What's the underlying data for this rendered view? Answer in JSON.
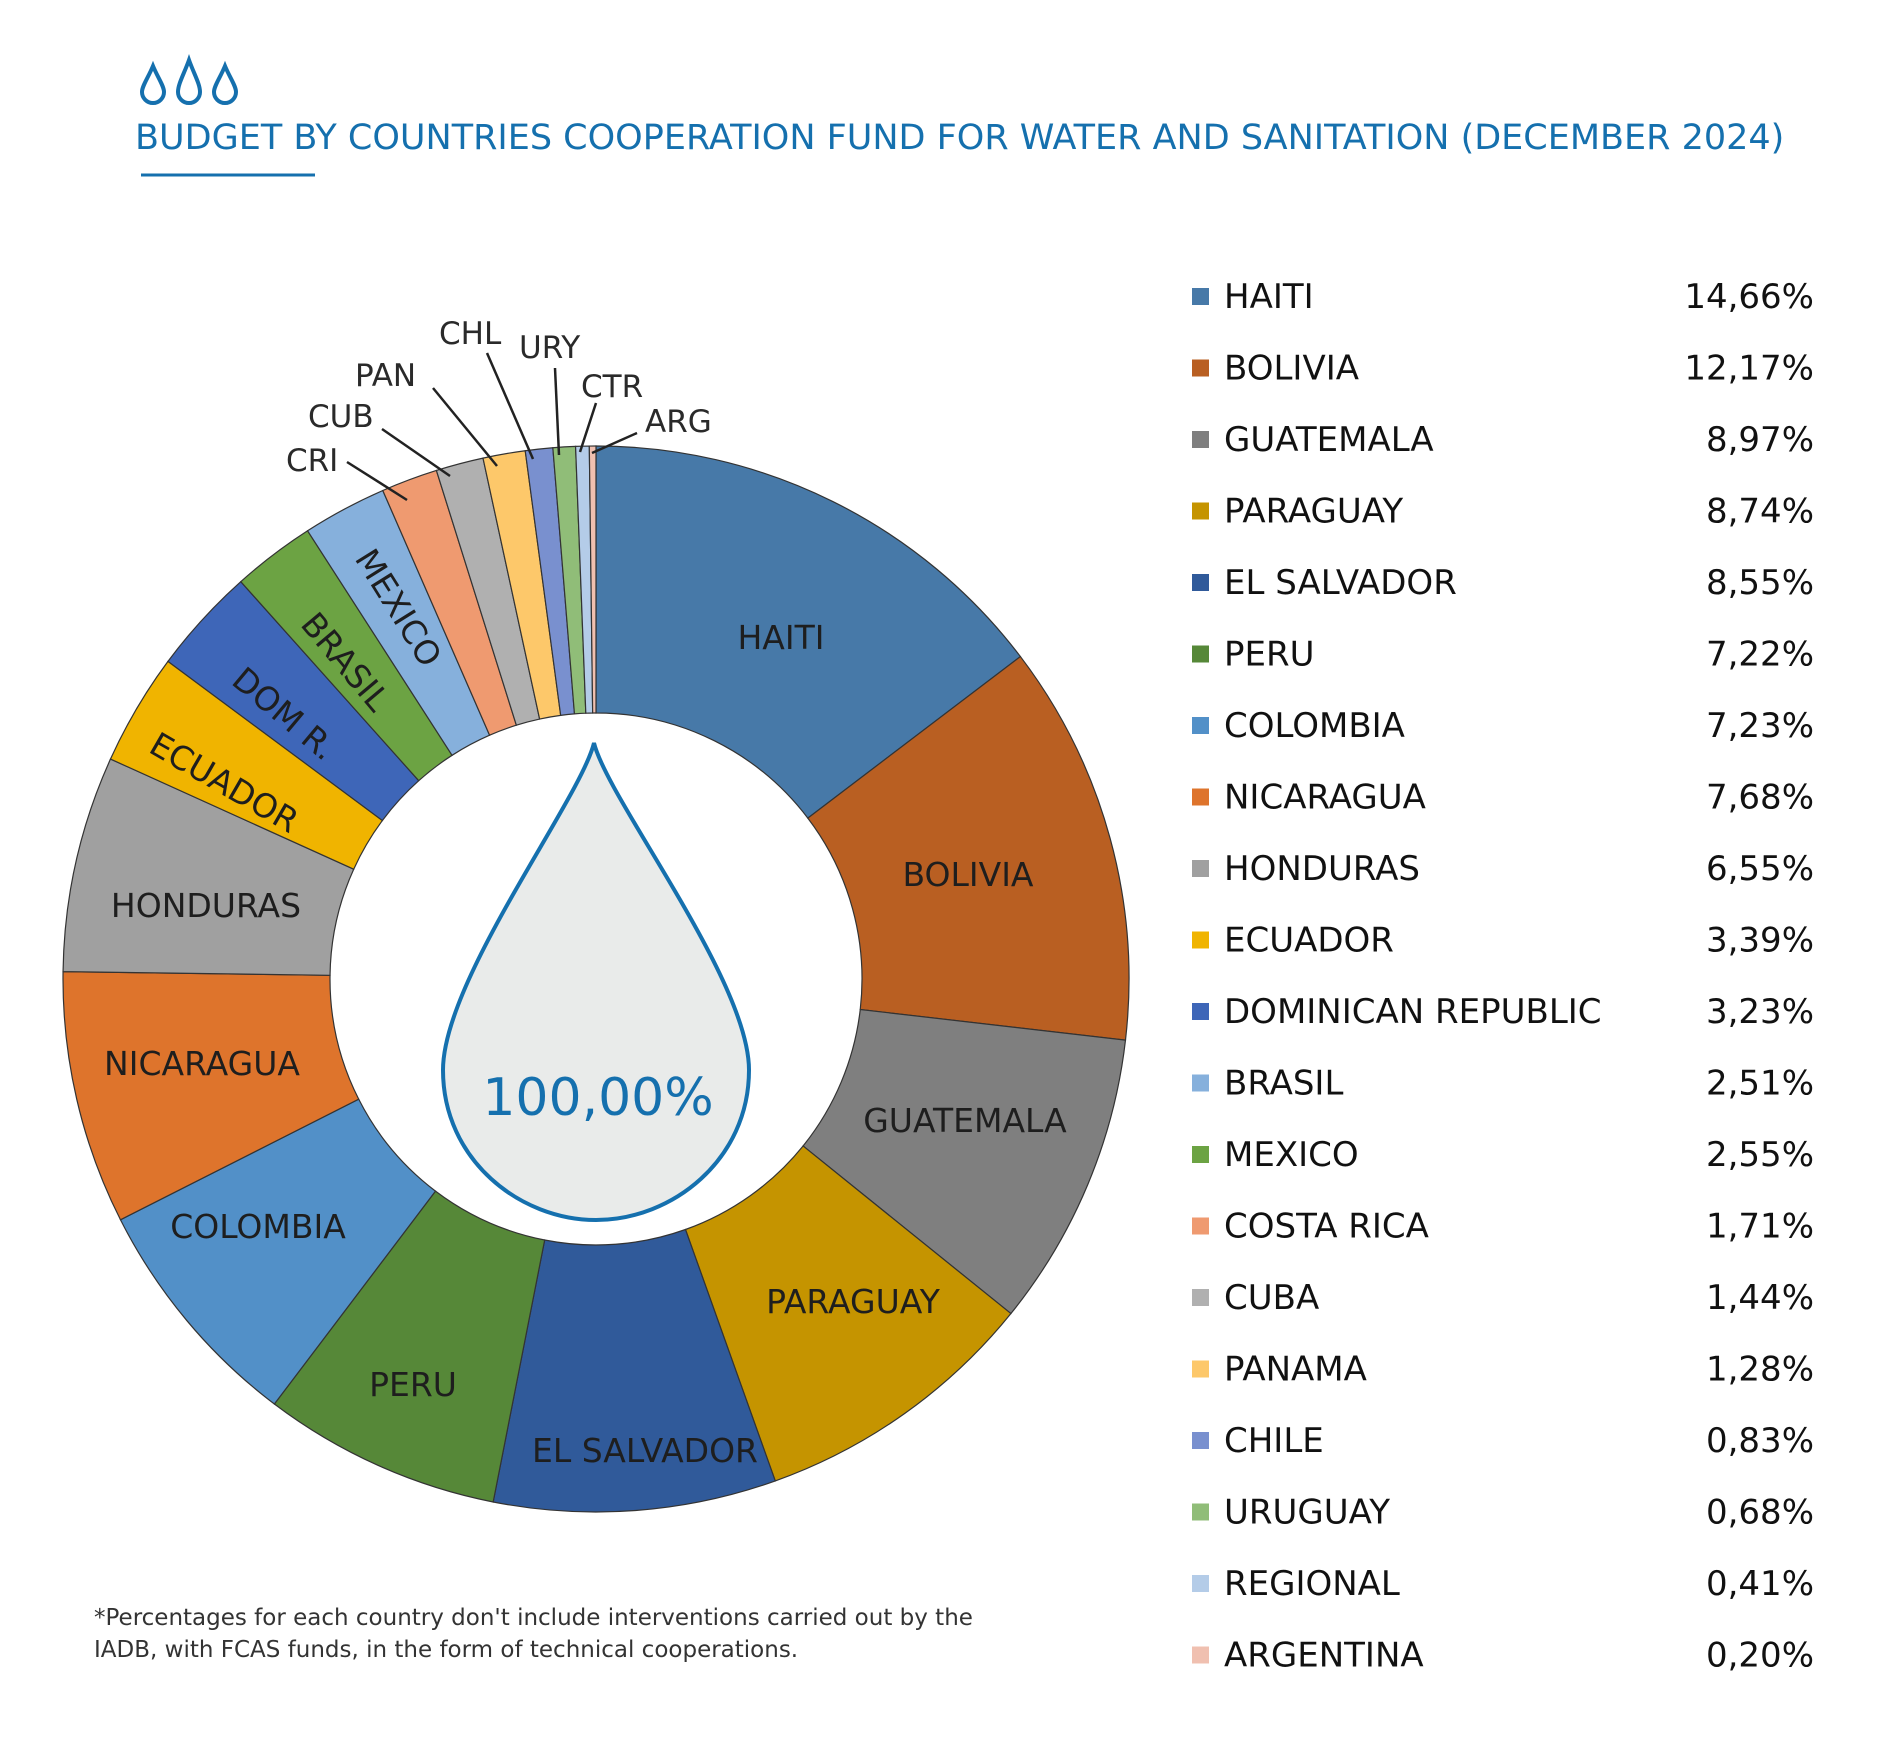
{
  "header": {
    "title": "BUDGET BY COUNTRIES  COOPERATION FUND FOR WATER AND SANITATION (DECEMBER 2024)",
    "icon": "water-drops-icon",
    "accent_color": "#1570ae"
  },
  "footnote": {
    "line1": "*Percentages for each country don't  include interventions carried out by the",
    "line2": "IADB, with FCAS funds, in the form of technical cooperations."
  },
  "chart_data": {
    "type": "pie",
    "variant": "donut",
    "title": "BUDGET BY COUNTRIES  COOPERATION FUND FOR WATER AND SANITATION (DECEMBER 2024)",
    "center_label": "100,00%",
    "legend_position": "right",
    "unit": "%",
    "slices": [
      {
        "label": "HAITI",
        "legend": "HAITI",
        "value": 14.66,
        "display": "14,66%",
        "color": "#4779a8"
      },
      {
        "label": "BOLIVIA",
        "legend": "BOLIVIA",
        "value": 12.17,
        "display": "12,17%",
        "color": "#b95f22"
      },
      {
        "label": "GUATEMALA",
        "legend": "GUATEMALA",
        "value": 8.97,
        "display": "8,97%",
        "color": "#7f7f7f"
      },
      {
        "label": "PARAGUAY",
        "legend": "PARAGUAY",
        "value": 8.74,
        "display": "8,74%",
        "color": "#c59400"
      },
      {
        "label": "EL SALVADOR",
        "legend": "EL SALVADOR",
        "value": 8.55,
        "display": "8,55%",
        "color": "#305a9a"
      },
      {
        "label": "PERU",
        "legend": "PERU",
        "value": 7.22,
        "display": "7,22%",
        "color": "#568838"
      },
      {
        "label": "COLOMBIA",
        "legend": "COLOMBIA",
        "value": 7.23,
        "display": "7,23%",
        "color": "#5290c8"
      },
      {
        "label": "NICARAGUA",
        "legend": "NICARAGUA",
        "value": 7.68,
        "display": "7,68%",
        "color": "#de742c"
      },
      {
        "label": "HONDURAS",
        "legend": "HONDURAS",
        "value": 6.55,
        "display": "6,55%",
        "color": "#a0a0a0"
      },
      {
        "label": "ECUADOR",
        "legend": "ECUADOR",
        "value": 3.39,
        "display": "3,39%",
        "color": "#f0b400"
      },
      {
        "label": "DOM R.",
        "legend": "DOMINICAN REPUBLIC",
        "value": 3.23,
        "display": "3,23%",
        "color": "#3e66b8"
      },
      {
        "label": "BRASIL",
        "legend": "BRASIL",
        "value": 2.51,
        "display": "2,51%",
        "color": "#86b0dc",
        "slice_color": "#6ca343"
      },
      {
        "label": "MEXICO",
        "legend": "MEXICO",
        "value": 2.55,
        "display": "2,55%",
        "color": "#6ca343",
        "slice_color": "#86b0dc"
      },
      {
        "label": "CRI",
        "legend": "COSTA RICA",
        "value": 1.71,
        "display": "1,71%",
        "color": "#ef9a70"
      },
      {
        "label": "CUB",
        "legend": "CUBA",
        "value": 1.44,
        "display": "1,44%",
        "color": "#b0b0b0"
      },
      {
        "label": "PAN",
        "legend": "PANAMA",
        "value": 1.28,
        "display": "1,28%",
        "color": "#fdc86a"
      },
      {
        "label": "CHL",
        "legend": "CHILE",
        "value": 0.83,
        "display": "0,83%",
        "color": "#7990cf"
      },
      {
        "label": "URY",
        "legend": "URUGUAY",
        "value": 0.68,
        "display": "0,68%",
        "color": "#90bd78"
      },
      {
        "label": "CTR",
        "legend": "REGIONAL",
        "value": 0.41,
        "display": "0,41%",
        "color": "#b4cce8"
      },
      {
        "label": "ARG",
        "legend": "ARGENTINA",
        "value": 0.2,
        "display": "0,20%",
        "color": "#f0c0b0"
      }
    ]
  }
}
